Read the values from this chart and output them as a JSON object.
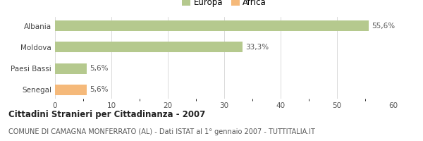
{
  "categories": [
    "Albania",
    "Moldova",
    "Paesi Bassi",
    "Senegal"
  ],
  "values": [
    55.6,
    33.3,
    5.6,
    5.6
  ],
  "bar_colors": [
    "#b5c98e",
    "#b5c98e",
    "#b5c98e",
    "#f5b97a"
  ],
  "labels": [
    "55,6%",
    "33,3%",
    "5,6%",
    "5,6%"
  ],
  "legend_items": [
    {
      "label": "Europa",
      "color": "#b5c98e"
    },
    {
      "label": "Africa",
      "color": "#f5b97a"
    }
  ],
  "xlim": [
    0,
    60
  ],
  "xticks": [
    0,
    10,
    20,
    30,
    40,
    50,
    60
  ],
  "title": "Cittadini Stranieri per Cittadinanza - 2007",
  "subtitle": "COMUNE DI CAMAGNA MONFERRATO (AL) - Dati ISTAT al 1° gennaio 2007 - TUTTITALIA.IT",
  "background_color": "#ffffff",
  "bar_height": 0.5,
  "title_fontsize": 8.5,
  "subtitle_fontsize": 7,
  "label_fontsize": 7.5,
  "tick_fontsize": 7.5,
  "legend_fontsize": 8.5
}
